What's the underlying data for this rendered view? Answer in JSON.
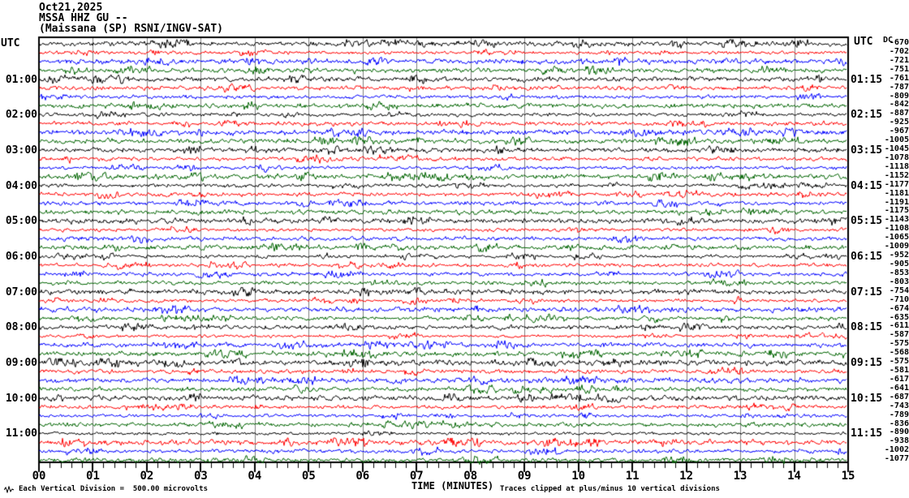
{
  "header": {
    "date": "Oct21,2025",
    "station_line": "MSSA HHZ GU --",
    "description": "(Maissana (SP) RSNI/INGV-SAT)"
  },
  "left_axis": {
    "title": "UTC"
  },
  "right_axis": {
    "title": "UTC",
    "dc_header": "DC"
  },
  "x_axis": {
    "title": "TIME (MINUTES)"
  },
  "footer": {
    "left_note": "Each Vertical Division =  500.00 microvolts",
    "right_note": "Traces clipped at plus/minus 10 vertical divisions",
    "waveform_icon": "waveform-icon"
  },
  "colors": {
    "trace_black": "#000000",
    "trace_red": "#ff0000",
    "trace_blue": "#0000ff",
    "trace_green": "#006400",
    "grid": "#808080",
    "frame": "#000000"
  },
  "chart_data": {
    "type": "line",
    "subtype": "helicorder-seismogram",
    "title": "MSSA HHZ GU -- (Maissana (SP) RSNI/INGV-SAT)",
    "date": "Oct21,2025",
    "xlabel": "TIME (MINUTES)",
    "x_range_minutes": [
      0,
      15
    ],
    "minutes_per_row": 15,
    "grid": "vertical line every minute",
    "x_tick_labels": [
      "00",
      "01",
      "02",
      "03",
      "04",
      "05",
      "06",
      "07",
      "08",
      "09",
      "10",
      "11",
      "12",
      "13",
      "14",
      "15"
    ],
    "vertical_division_microvolts": 500.0,
    "clip_divisions": 10,
    "trace_character": "low-amplitude background noise, unclipped",
    "rows": [
      {
        "start": "00:00",
        "color": "black",
        "dc": -670
      },
      {
        "start": "00:15",
        "color": "red",
        "dc": -702
      },
      {
        "start": "00:30",
        "color": "blue",
        "dc": -721
      },
      {
        "start": "00:45",
        "color": "green",
        "dc": -751
      },
      {
        "start": "01:00",
        "color": "black",
        "dc": -761,
        "left_label": "01:00",
        "right_label": "01:15"
      },
      {
        "start": "01:15",
        "color": "red",
        "dc": -787
      },
      {
        "start": "01:30",
        "color": "blue",
        "dc": -809
      },
      {
        "start": "01:45",
        "color": "green",
        "dc": -842
      },
      {
        "start": "02:00",
        "color": "black",
        "dc": -887,
        "left_label": "02:00",
        "right_label": "02:15"
      },
      {
        "start": "02:15",
        "color": "red",
        "dc": -925
      },
      {
        "start": "02:30",
        "color": "blue",
        "dc": -967
      },
      {
        "start": "02:45",
        "color": "green",
        "dc": -1005
      },
      {
        "start": "03:00",
        "color": "black",
        "dc": -1045,
        "left_label": "03:00",
        "right_label": "03:15"
      },
      {
        "start": "03:15",
        "color": "red",
        "dc": -1078
      },
      {
        "start": "03:30",
        "color": "blue",
        "dc": -1118
      },
      {
        "start": "03:45",
        "color": "green",
        "dc": -1152
      },
      {
        "start": "04:00",
        "color": "black",
        "dc": -1177,
        "left_label": "04:00",
        "right_label": "04:15"
      },
      {
        "start": "04:15",
        "color": "red",
        "dc": -1181
      },
      {
        "start": "04:30",
        "color": "blue",
        "dc": -1191
      },
      {
        "start": "04:45",
        "color": "green",
        "dc": -1175
      },
      {
        "start": "05:00",
        "color": "black",
        "dc": -1143,
        "left_label": "05:00",
        "right_label": "05:15"
      },
      {
        "start": "05:15",
        "color": "red",
        "dc": -1108
      },
      {
        "start": "05:30",
        "color": "blue",
        "dc": -1065
      },
      {
        "start": "05:45",
        "color": "green",
        "dc": -1009
      },
      {
        "start": "06:00",
        "color": "black",
        "dc": -952,
        "left_label": "06:00",
        "right_label": "06:15"
      },
      {
        "start": "06:15",
        "color": "red",
        "dc": -905
      },
      {
        "start": "06:30",
        "color": "blue",
        "dc": -853
      },
      {
        "start": "06:45",
        "color": "green",
        "dc": -803
      },
      {
        "start": "07:00",
        "color": "black",
        "dc": -754,
        "left_label": "07:00",
        "right_label": "07:15"
      },
      {
        "start": "07:15",
        "color": "red",
        "dc": -710
      },
      {
        "start": "07:30",
        "color": "blue",
        "dc": -674
      },
      {
        "start": "07:45",
        "color": "green",
        "dc": -635
      },
      {
        "start": "08:00",
        "color": "black",
        "dc": -611,
        "left_label": "08:00",
        "right_label": "08:15"
      },
      {
        "start": "08:15",
        "color": "red",
        "dc": -587
      },
      {
        "start": "08:30",
        "color": "blue",
        "dc": -575
      },
      {
        "start": "08:45",
        "color": "green",
        "dc": -568
      },
      {
        "start": "09:00",
        "color": "black",
        "dc": -575,
        "left_label": "09:00",
        "right_label": "09:15"
      },
      {
        "start": "09:15",
        "color": "red",
        "dc": -581
      },
      {
        "start": "09:30",
        "color": "blue",
        "dc": -617
      },
      {
        "start": "09:45",
        "color": "green",
        "dc": -641
      },
      {
        "start": "10:00",
        "color": "black",
        "dc": -687,
        "left_label": "10:00",
        "right_label": "10:15"
      },
      {
        "start": "10:15",
        "color": "red",
        "dc": -743
      },
      {
        "start": "10:30",
        "color": "blue",
        "dc": -789
      },
      {
        "start": "10:45",
        "color": "green",
        "dc": -836
      },
      {
        "start": "11:00",
        "color": "black",
        "dc": -890,
        "left_label": "11:00",
        "right_label": "11:15"
      },
      {
        "start": "11:15",
        "color": "red",
        "dc": -938
      },
      {
        "start": "11:30",
        "color": "blue",
        "dc": -1002
      },
      {
        "start": "11:45",
        "color": "green",
        "dc": -1077
      }
    ]
  }
}
